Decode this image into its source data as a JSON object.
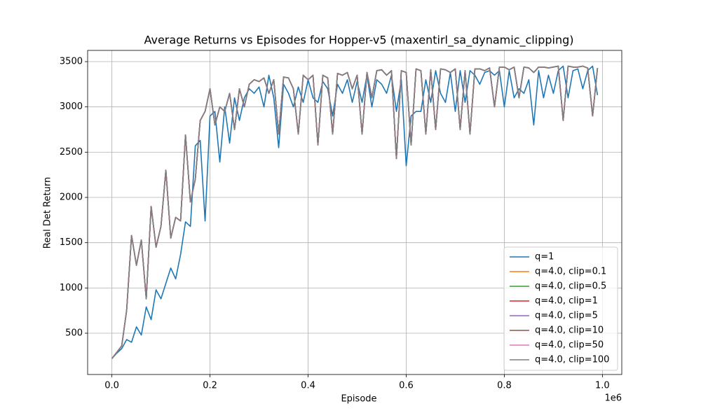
{
  "chart_data": {
    "type": "line",
    "title": "Average Returns vs Episodes for Hopper-v5 (maxentirl_sa_dynamic_clipping)",
    "xlabel": "Episode",
    "ylabel": "Real Det Return",
    "x_offset_label": "1e6",
    "xlim": [
      -49500,
      1039500
    ],
    "ylim": [
      44,
      3624
    ],
    "xticks": [
      {
        "value": 0,
        "label": "0.0"
      },
      {
        "value": 200000,
        "label": "0.2"
      },
      {
        "value": 400000,
        "label": "0.4"
      },
      {
        "value": 600000,
        "label": "0.6"
      },
      {
        "value": 800000,
        "label": "0.8"
      },
      {
        "value": 1000000,
        "label": "1.0"
      }
    ],
    "yticks": [
      500,
      1000,
      1500,
      2000,
      2500,
      3000,
      3500
    ],
    "grid": true,
    "legend": "lower right",
    "x": [
      0,
      10000,
      20000,
      30000,
      40000,
      50000,
      60000,
      70000,
      80000,
      90000,
      100000,
      110000,
      120000,
      130000,
      140000,
      150000,
      160000,
      170000,
      180000,
      190000,
      200000,
      210000,
      220000,
      230000,
      240000,
      250000,
      260000,
      270000,
      280000,
      290000,
      300000,
      310000,
      320000,
      330000,
      340000,
      350000,
      360000,
      370000,
      380000,
      390000,
      400000,
      410000,
      420000,
      430000,
      440000,
      450000,
      460000,
      470000,
      480000,
      490000,
      500000,
      510000,
      520000,
      530000,
      540000,
      550000,
      560000,
      570000,
      580000,
      590000,
      600000,
      610000,
      620000,
      630000,
      640000,
      650000,
      660000,
      670000,
      680000,
      690000,
      700000,
      710000,
      720000,
      730000,
      740000,
      750000,
      760000,
      770000,
      780000,
      790000,
      800000,
      810000,
      820000,
      830000,
      840000,
      850000,
      860000,
      870000,
      880000,
      890000,
      900000,
      910000,
      920000,
      930000,
      940000,
      950000,
      960000,
      970000,
      980000,
      990000
    ],
    "series": [
      {
        "name": "q=1",
        "color": "#1f77b4",
        "values": [
          220,
          280,
          330,
          430,
          400,
          570,
          480,
          790,
          650,
          980,
          880,
          1050,
          1220,
          1100,
          1370,
          1730,
          1680,
          2570,
          2630,
          1740,
          2900,
          2950,
          2390,
          3000,
          2600,
          3100,
          2850,
          3100,
          3200,
          3150,
          3220,
          3000,
          3350,
          3100,
          2550,
          3250,
          3150,
          3000,
          3220,
          3050,
          3300,
          3100,
          3050,
          3280,
          3200,
          2900,
          3250,
          3150,
          3300,
          3050,
          3280,
          3050,
          3350,
          3000,
          3300,
          3250,
          3150,
          3350,
          2950,
          3300,
          2350,
          2900,
          2950,
          2950,
          3300,
          3050,
          3400,
          3150,
          3050,
          3380,
          2950,
          3400,
          3050,
          3400,
          3350,
          3250,
          3380,
          3400,
          3350,
          3400,
          3000,
          3400,
          3100,
          3200,
          3150,
          3300,
          2800,
          3400,
          3100,
          3350,
          3150,
          3400,
          3450,
          3100,
          3400,
          3420,
          3200,
          3400,
          3450,
          3130
        ]
      },
      {
        "name": "q=4.0, clip=0.1",
        "color": "#ff7f0e",
        "values": [
          220,
          290,
          360,
          750,
          1580,
          1250,
          1530,
          880,
          1900,
          1450,
          1680,
          2300,
          1550,
          1780,
          1740,
          2690,
          1950,
          2200,
          2850,
          2950,
          3200,
          2800,
          3000,
          2950,
          3150,
          2750,
          3200,
          3000,
          3250,
          3300,
          3280,
          3320,
          3150,
          3300,
          2700,
          3330,
          3320,
          3200,
          2700,
          3350,
          3300,
          3350,
          2580,
          3350,
          3320,
          2700,
          3370,
          3350,
          3380,
          3200,
          3350,
          2700,
          3380,
          3100,
          3400,
          3410,
          3350,
          3400,
          2430,
          3400,
          3380,
          2580,
          3420,
          3400,
          2700,
          3410,
          2750,
          3420,
          3410,
          3380,
          3420,
          2750,
          3400,
          2700,
          3420,
          3420,
          3400,
          3430,
          3000,
          3440,
          3440,
          3410,
          3440,
          3100,
          3440,
          3430,
          3380,
          3440,
          3440,
          3430,
          3440,
          3450,
          2850,
          3450,
          3440,
          3440,
          3450,
          3430,
          2900,
          3430
        ]
      },
      {
        "name": "q=4.0, clip=0.5",
        "color": "#2ca02c",
        "values": [
          220,
          290,
          360,
          750,
          1580,
          1250,
          1530,
          880,
          1900,
          1450,
          1680,
          2300,
          1550,
          1780,
          1740,
          2690,
          1950,
          2200,
          2850,
          2950,
          3200,
          2800,
          3000,
          2950,
          3150,
          2750,
          3200,
          3000,
          3250,
          3300,
          3280,
          3320,
          3150,
          3300,
          2700,
          3330,
          3320,
          3200,
          2700,
          3350,
          3300,
          3350,
          2580,
          3350,
          3320,
          2700,
          3370,
          3350,
          3380,
          3200,
          3350,
          2700,
          3380,
          3100,
          3400,
          3410,
          3350,
          3400,
          2430,
          3400,
          3380,
          2580,
          3420,
          3400,
          2700,
          3410,
          2750,
          3420,
          3410,
          3380,
          3420,
          2750,
          3400,
          2700,
          3420,
          3420,
          3400,
          3430,
          3000,
          3440,
          3440,
          3410,
          3440,
          3100,
          3440,
          3430,
          3380,
          3440,
          3440,
          3430,
          3440,
          3450,
          2850,
          3450,
          3440,
          3440,
          3450,
          3430,
          2900,
          3430
        ]
      },
      {
        "name": "q=4.0, clip=1",
        "color": "#d62728",
        "values": [
          220,
          290,
          360,
          750,
          1580,
          1250,
          1530,
          880,
          1900,
          1450,
          1680,
          2300,
          1550,
          1780,
          1740,
          2690,
          1950,
          2200,
          2850,
          2950,
          3200,
          2800,
          3000,
          2950,
          3150,
          2750,
          3200,
          3000,
          3250,
          3300,
          3280,
          3320,
          3150,
          3300,
          2700,
          3330,
          3320,
          3200,
          2700,
          3350,
          3300,
          3350,
          2580,
          3350,
          3320,
          2700,
          3370,
          3350,
          3380,
          3200,
          3350,
          2700,
          3380,
          3100,
          3400,
          3410,
          3350,
          3400,
          2430,
          3400,
          3380,
          2580,
          3420,
          3400,
          2700,
          3410,
          2750,
          3420,
          3410,
          3380,
          3420,
          2750,
          3400,
          2700,
          3420,
          3420,
          3400,
          3430,
          3000,
          3440,
          3440,
          3410,
          3440,
          3100,
          3440,
          3430,
          3380,
          3440,
          3440,
          3430,
          3440,
          3450,
          2850,
          3450,
          3440,
          3440,
          3450,
          3430,
          2900,
          3430
        ]
      },
      {
        "name": "q=4.0, clip=5",
        "color": "#9467bd",
        "values": [
          220,
          290,
          360,
          750,
          1580,
          1250,
          1530,
          880,
          1900,
          1450,
          1680,
          2300,
          1550,
          1780,
          1740,
          2690,
          1950,
          2200,
          2850,
          2950,
          3200,
          2800,
          3000,
          2950,
          3150,
          2750,
          3200,
          3000,
          3250,
          3300,
          3280,
          3320,
          3150,
          3300,
          2700,
          3330,
          3320,
          3200,
          2700,
          3350,
          3300,
          3350,
          2580,
          3350,
          3320,
          2700,
          3370,
          3350,
          3380,
          3200,
          3350,
          2700,
          3380,
          3100,
          3400,
          3410,
          3350,
          3400,
          2430,
          3400,
          3380,
          2580,
          3420,
          3400,
          2700,
          3410,
          2750,
          3420,
          3410,
          3380,
          3420,
          2750,
          3400,
          2700,
          3420,
          3420,
          3400,
          3430,
          3000,
          3440,
          3440,
          3410,
          3440,
          3100,
          3440,
          3430,
          3380,
          3440,
          3440,
          3430,
          3440,
          3450,
          2850,
          3450,
          3440,
          3440,
          3450,
          3430,
          2900,
          3430
        ]
      },
      {
        "name": "q=4.0, clip=10",
        "color": "#8c564b",
        "values": [
          220,
          290,
          360,
          750,
          1580,
          1250,
          1530,
          880,
          1900,
          1450,
          1680,
          2300,
          1550,
          1780,
          1740,
          2690,
          1950,
          2200,
          2850,
          2950,
          3200,
          2800,
          3000,
          2950,
          3150,
          2750,
          3200,
          3000,
          3250,
          3300,
          3280,
          3320,
          3150,
          3300,
          2700,
          3330,
          3320,
          3200,
          2700,
          3350,
          3300,
          3350,
          2580,
          3350,
          3320,
          2700,
          3370,
          3350,
          3380,
          3200,
          3350,
          2700,
          3380,
          3100,
          3400,
          3410,
          3350,
          3400,
          2430,
          3400,
          3380,
          2580,
          3420,
          3400,
          2700,
          3410,
          2750,
          3420,
          3410,
          3380,
          3420,
          2750,
          3400,
          2700,
          3420,
          3420,
          3400,
          3430,
          3000,
          3440,
          3440,
          3410,
          3440,
          3100,
          3440,
          3430,
          3380,
          3440,
          3440,
          3430,
          3440,
          3450,
          2850,
          3450,
          3440,
          3440,
          3450,
          3430,
          2900,
          3430
        ]
      },
      {
        "name": "q=4.0, clip=50",
        "color": "#e377c2",
        "values": [
          220,
          290,
          360,
          750,
          1580,
          1250,
          1530,
          880,
          1900,
          1450,
          1680,
          2300,
          1550,
          1780,
          1740,
          2690,
          1950,
          2200,
          2850,
          2950,
          3200,
          2800,
          3000,
          2950,
          3150,
          2750,
          3200,
          3000,
          3250,
          3300,
          3280,
          3320,
          3150,
          3300,
          2700,
          3330,
          3320,
          3200,
          2700,
          3350,
          3300,
          3350,
          2580,
          3350,
          3320,
          2700,
          3370,
          3350,
          3380,
          3200,
          3350,
          2700,
          3380,
          3100,
          3400,
          3410,
          3350,
          3400,
          2430,
          3400,
          3380,
          2580,
          3420,
          3400,
          2700,
          3410,
          2750,
          3420,
          3410,
          3380,
          3420,
          2750,
          3400,
          2700,
          3420,
          3420,
          3400,
          3430,
          3000,
          3440,
          3440,
          3410,
          3440,
          3100,
          3440,
          3430,
          3380,
          3440,
          3440,
          3430,
          3440,
          3450,
          2850,
          3450,
          3440,
          3440,
          3450,
          3430,
          2900,
          3430
        ]
      },
      {
        "name": "q=4.0, clip=100",
        "color": "#7f7f7f",
        "values": [
          220,
          290,
          360,
          750,
          1580,
          1250,
          1530,
          880,
          1900,
          1450,
          1680,
          2300,
          1550,
          1780,
          1740,
          2690,
          1950,
          2200,
          2850,
          2950,
          3200,
          2800,
          3000,
          2950,
          3150,
          2750,
          3200,
          3000,
          3250,
          3300,
          3280,
          3320,
          3150,
          3300,
          2700,
          3330,
          3320,
          3200,
          2700,
          3350,
          3300,
          3350,
          2580,
          3350,
          3320,
          2700,
          3370,
          3350,
          3380,
          3200,
          3350,
          2700,
          3380,
          3100,
          3400,
          3410,
          3350,
          3400,
          2430,
          3400,
          3380,
          2580,
          3420,
          3400,
          2700,
          3410,
          2750,
          3420,
          3410,
          3380,
          3420,
          2750,
          3400,
          2700,
          3420,
          3420,
          3400,
          3430,
          3000,
          3440,
          3440,
          3410,
          3440,
          3100,
          3440,
          3430,
          3380,
          3440,
          3440,
          3430,
          3440,
          3450,
          2850,
          3450,
          3440,
          3440,
          3450,
          3430,
          2900,
          3430
        ]
      }
    ]
  }
}
